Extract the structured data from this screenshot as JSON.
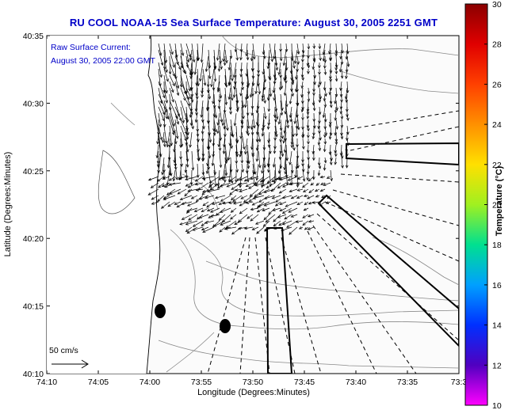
{
  "title": "RU COOL  NOAA-15  Sea Surface Temperature:  August 30, 2005 2251 GMT",
  "annotation": {
    "line1": "Raw Surface Current:",
    "line2": "August 30, 2005 22:00 GMT"
  },
  "scale_label": "50 cm/s",
  "axes": {
    "xlabel": "Longitude (Degrees:Minutes)",
    "ylabel": "Latitude (Degrees:Minutes)",
    "xticks": [
      "74:10",
      "74:05",
      "74:00",
      "73:55",
      "73:50",
      "73:45",
      "73:40",
      "73:35",
      "73:3"
    ],
    "yticks": [
      "40:35",
      "40:30",
      "40:25",
      "40:20",
      "40:15",
      "40:10"
    ]
  },
  "colorbar": {
    "label": "Temperature (°C)",
    "ticks": [
      "30",
      "28",
      "26",
      "24",
      "22",
      "20",
      "18",
      "16",
      "14",
      "12",
      "10"
    ],
    "range": [
      10,
      30
    ]
  }
}
